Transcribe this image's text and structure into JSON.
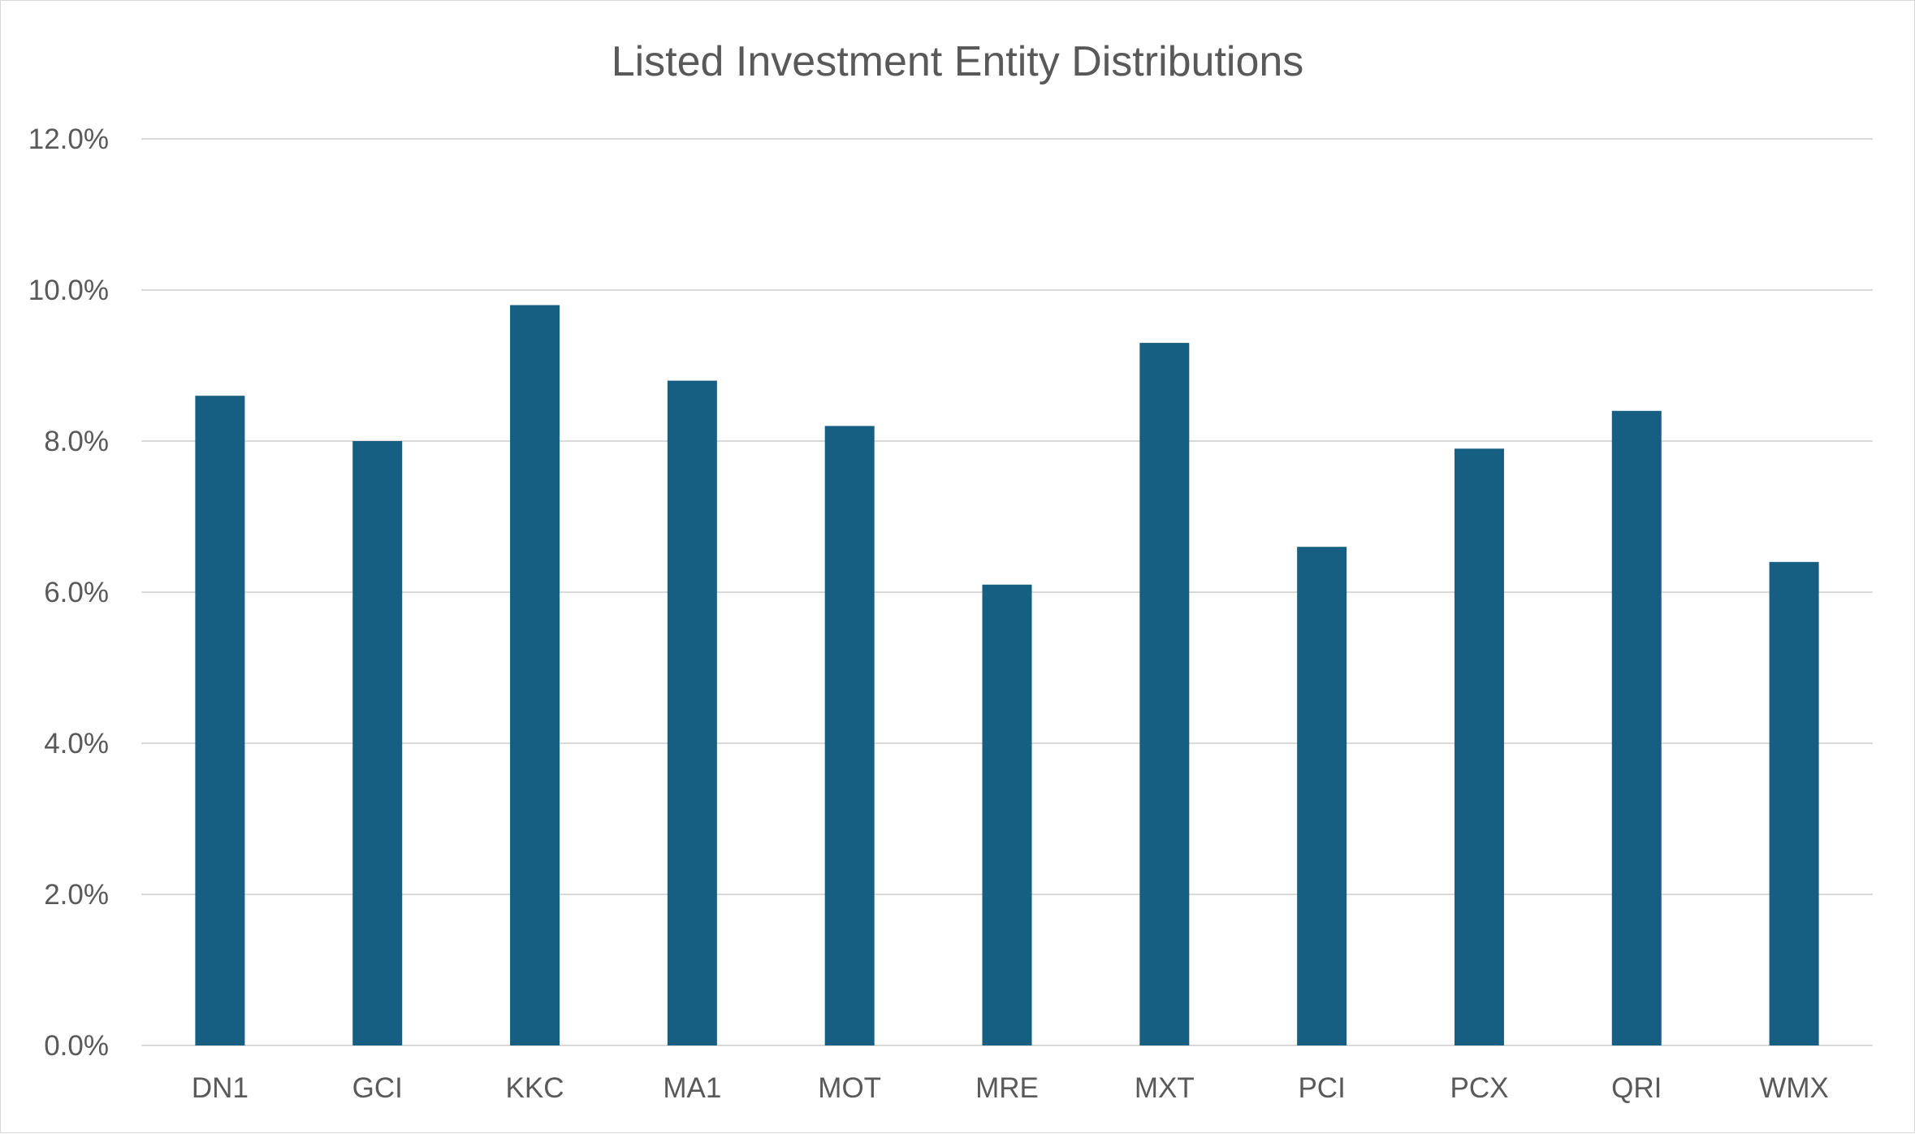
{
  "chart_data": {
    "type": "bar",
    "title": "Listed Investment Entity Distributions",
    "xlabel": "",
    "ylabel": "",
    "categories": [
      "DN1",
      "GCI",
      "KKC",
      "MA1",
      "MOT",
      "MRE",
      "MXT",
      "PCI",
      "PCX",
      "QRI",
      "WMX"
    ],
    "values": [
      8.6,
      8.0,
      9.8,
      8.8,
      8.2,
      6.1,
      9.3,
      6.6,
      7.9,
      8.4,
      6.4
    ],
    "value_unit": "%",
    "ylim": [
      0,
      12
    ],
    "yticks": [
      "0.0%",
      "2.0%",
      "4.0%",
      "6.0%",
      "8.0%",
      "10.0%",
      "12.0%"
    ],
    "ytick_values": [
      0,
      2,
      4,
      6,
      8,
      10,
      12
    ],
    "grid": true,
    "legend": "none",
    "bar_color": "#165f82",
    "gridline_color": "#d9d9d9",
    "text_color": "#595959"
  }
}
